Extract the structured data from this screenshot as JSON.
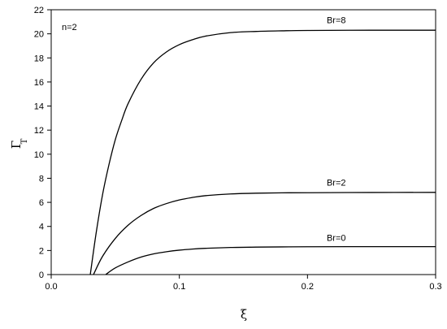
{
  "chart_data": {
    "type": "line",
    "xlabel": "ξ",
    "ylabel": {
      "main": "Γ",
      "sub": "T"
    },
    "xlim": [
      0.0,
      0.3
    ],
    "ylim": [
      0,
      22
    ],
    "x_ticks": [
      0.0,
      0.1,
      0.2,
      0.3
    ],
    "x_tick_labels": [
      "0.0",
      "0.1",
      "0.2",
      "0.3"
    ],
    "y_ticks": [
      0,
      2,
      4,
      6,
      8,
      10,
      12,
      14,
      16,
      18,
      20,
      22
    ],
    "y_tick_labels": [
      "0",
      "2",
      "4",
      "6",
      "8",
      "10",
      "12",
      "14",
      "16",
      "18",
      "20",
      "22"
    ],
    "grid": false,
    "legend": "none",
    "annotation": "n=2",
    "series": [
      {
        "name": "Br=8",
        "label_at": [
          0.215,
          20.9
        ],
        "x": [
          0.0305,
          0.035,
          0.04,
          0.045,
          0.05,
          0.055,
          0.06,
          0.07,
          0.08,
          0.09,
          0.1,
          0.11,
          0.12,
          0.14,
          0.16,
          0.18,
          0.2,
          0.25,
          0.3
        ],
        "y": [
          0,
          3.4,
          6.6,
          9.1,
          11.2,
          12.8,
          14.2,
          16.2,
          17.6,
          18.5,
          19.1,
          19.5,
          19.8,
          20.1,
          20.2,
          20.25,
          20.28,
          20.3,
          20.3
        ]
      },
      {
        "name": "Br=2",
        "label_at": [
          0.215,
          7.4
        ],
        "x": [
          0.033,
          0.04,
          0.05,
          0.06,
          0.07,
          0.08,
          0.09,
          0.1,
          0.11,
          0.12,
          0.14,
          0.16,
          0.18,
          0.2,
          0.25,
          0.3
        ],
        "y": [
          0,
          1.5,
          3.0,
          4.1,
          4.9,
          5.5,
          5.9,
          6.2,
          6.4,
          6.55,
          6.7,
          6.76,
          6.79,
          6.8,
          6.82,
          6.83
        ]
      },
      {
        "name": "Br=0",
        "label_at": [
          0.215,
          2.8
        ],
        "x": [
          0.0425,
          0.05,
          0.06,
          0.07,
          0.08,
          0.09,
          0.1,
          0.11,
          0.12,
          0.14,
          0.16,
          0.18,
          0.2,
          0.25,
          0.3
        ],
        "y": [
          0,
          0.55,
          1.05,
          1.45,
          1.72,
          1.9,
          2.03,
          2.12,
          2.18,
          2.25,
          2.28,
          2.3,
          2.31,
          2.32,
          2.32
        ]
      }
    ]
  }
}
